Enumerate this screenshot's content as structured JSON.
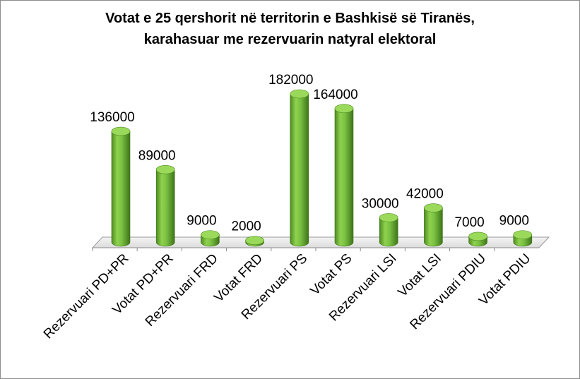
{
  "chart_data": {
    "type": "bar",
    "title_line1": "Votat e 25 qershorit në territorin e Bashkisë së Tiranës,",
    "title_line2": "karahasuar me rezervuarin natyral elektoral",
    "categories": [
      "Rezervuari PD+PR",
      "Votat PD+PR",
      "Rezervuari FRD",
      "Votat FRD",
      "Rezervuari PS",
      "Votat PS",
      "Rezervuari LSI",
      "Votat LSI",
      "Rezervuari PDIU",
      "Votat PDIU"
    ],
    "values": [
      136000,
      89000,
      9000,
      2000,
      182000,
      164000,
      30000,
      42000,
      7000,
      9000
    ],
    "value_labels": [
      "136000",
      "89000",
      "9000",
      "2000",
      "182000",
      "164000",
      "30000",
      "42000",
      "7000",
      "9000"
    ],
    "ylim": [
      0,
      190000
    ],
    "bar_color": "#7ac142",
    "grid": false,
    "legend": "none"
  }
}
